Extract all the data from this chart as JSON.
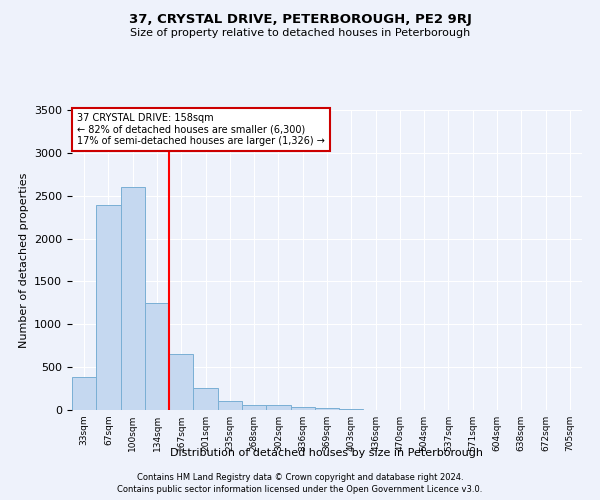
{
  "title": "37, CRYSTAL DRIVE, PETERBOROUGH, PE2 9RJ",
  "subtitle": "Size of property relative to detached houses in Peterborough",
  "xlabel": "Distribution of detached houses by size in Peterborough",
  "ylabel": "Number of detached properties",
  "bar_labels": [
    "33sqm",
    "67sqm",
    "100sqm",
    "134sqm",
    "167sqm",
    "201sqm",
    "235sqm",
    "268sqm",
    "302sqm",
    "336sqm",
    "369sqm",
    "403sqm",
    "436sqm",
    "470sqm",
    "504sqm",
    "537sqm",
    "571sqm",
    "604sqm",
    "638sqm",
    "672sqm",
    "705sqm"
  ],
  "bar_values": [
    380,
    2390,
    2600,
    1250,
    650,
    260,
    100,
    60,
    60,
    40,
    25,
    15,
    5,
    3,
    2,
    1,
    1,
    1,
    0,
    0,
    0
  ],
  "bar_color": "#c5d8f0",
  "bar_edge_color": "#7aafd4",
  "red_line_x": 3.5,
  "annotation_line1": "37 CRYSTAL DRIVE: 158sqm",
  "annotation_line2": "← 82% of detached houses are smaller (6,300)",
  "annotation_line3": "17% of semi-detached houses are larger (1,326) →",
  "annotation_box_color": "#ffffff",
  "annotation_box_edge": "#cc0000",
  "ylim": [
    0,
    3500
  ],
  "yticks": [
    0,
    500,
    1000,
    1500,
    2000,
    2500,
    3000,
    3500
  ],
  "background_color": "#eef2fb",
  "grid_color": "#ffffff",
  "footer_line1": "Contains HM Land Registry data © Crown copyright and database right 2024.",
  "footer_line2": "Contains public sector information licensed under the Open Government Licence v3.0."
}
